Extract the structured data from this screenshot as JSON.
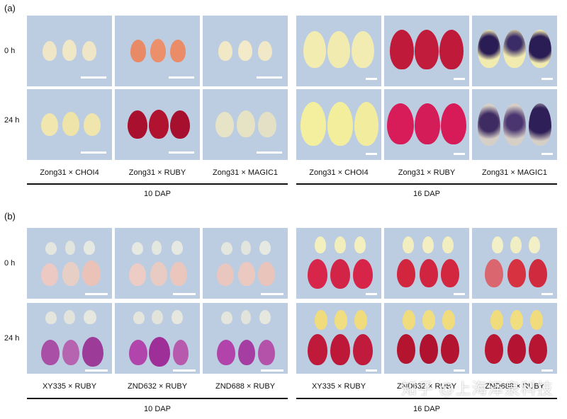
{
  "panels": [
    {
      "letter": "(a)",
      "rows": [
        "0 h",
        "24 h"
      ],
      "groups": [
        {
          "label": "10 DAP",
          "columns": [
            "Zong31 × CHOI4",
            "Zong31 × RUBY",
            "Zong31 × MAGIC1"
          ]
        },
        {
          "label": "16 DAP",
          "columns": [
            "Zong31 × CHOI4",
            "Zong31 × RUBY",
            "Zong31 × MAGIC1"
          ]
        }
      ]
    },
    {
      "letter": "(b)",
      "rows": [
        "0 h",
        "24 h"
      ],
      "groups": [
        {
          "label": "10 DAP",
          "columns": [
            "XY335 × RUBY",
            "ZND632 × RUBY",
            "ZND688 × RUBY"
          ]
        },
        {
          "label": "16 DAP",
          "columns": [
            "XY335 × RUBY",
            "ZND632 × RUBY",
            "ZND688 × RUBY"
          ]
        }
      ]
    }
  ],
  "watermark": "知乎 @上海泽泉科技",
  "colors": {
    "background_cell": "#bccde2",
    "yellow_kernel": "#f3ecb0",
    "pale_kernel": "#efe6c8",
    "orange_kernel": "#e98a66",
    "red_kernel": "#c01a3a",
    "crimson_kernel": "#a8102e",
    "purple_kernel": "#a94fa6",
    "dark_purple_spot": "#2a1d55"
  }
}
